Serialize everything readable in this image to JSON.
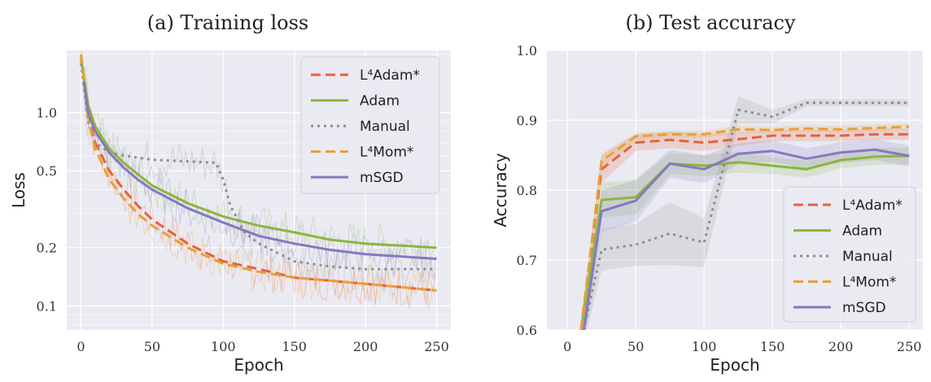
{
  "chart_data": [
    {
      "type": "line",
      "title": "(a) Training loss",
      "xlabel": "Epoch",
      "ylabel": "Loss",
      "yscale": "log",
      "xlim": [
        -10,
        260
      ],
      "ylim": [
        0.075,
        2.1
      ],
      "xticks": [
        0,
        50,
        100,
        150,
        200,
        250
      ],
      "yticks": [
        0.1,
        0.2,
        0.5,
        1.0
      ],
      "ytick_labels": [
        "0.1",
        "0.2",
        "0.5",
        "1.0"
      ],
      "grid": true,
      "legend": "top-right",
      "series": [
        {
          "name": "L⁴Adam*",
          "color": "#e8613c",
          "dash": "dashed",
          "x": [
            0,
            5,
            10,
            20,
            30,
            40,
            50,
            75,
            100,
            125,
            150,
            175,
            200,
            225,
            250
          ],
          "y": [
            2.0,
            1.0,
            0.7,
            0.5,
            0.4,
            0.33,
            0.28,
            0.21,
            0.17,
            0.155,
            0.14,
            0.135,
            0.13,
            0.125,
            0.12
          ]
        },
        {
          "name": "Adam",
          "color": "#8ab63f",
          "dash": "solid",
          "x": [
            0,
            5,
            10,
            20,
            30,
            40,
            50,
            75,
            100,
            125,
            150,
            175,
            200,
            225,
            250
          ],
          "y": [
            1.9,
            1.1,
            0.85,
            0.65,
            0.55,
            0.48,
            0.42,
            0.34,
            0.29,
            0.26,
            0.24,
            0.22,
            0.21,
            0.205,
            0.2
          ]
        },
        {
          "name": "Manual",
          "color": "#8e8e8e",
          "dash": "dotted",
          "x": [
            0,
            5,
            10,
            20,
            30,
            50,
            75,
            95,
            100,
            105,
            115,
            125,
            150,
            175,
            200,
            225,
            250
          ],
          "y": [
            1.8,
            0.9,
            0.7,
            0.62,
            0.6,
            0.57,
            0.56,
            0.55,
            0.45,
            0.33,
            0.24,
            0.21,
            0.17,
            0.16,
            0.155,
            0.155,
            0.155
          ]
        },
        {
          "name": "L⁴Mom*",
          "color": "#e8a033",
          "dash": "dashed",
          "x": [
            0,
            5,
            10,
            20,
            30,
            40,
            50,
            75,
            100,
            125,
            150,
            175,
            200,
            225,
            250
          ],
          "y": [
            2.0,
            0.95,
            0.65,
            0.45,
            0.36,
            0.3,
            0.26,
            0.2,
            0.165,
            0.15,
            0.14,
            0.135,
            0.13,
            0.125,
            0.12
          ]
        },
        {
          "name": "mSGD",
          "color": "#8578c0",
          "dash": "solid",
          "x": [
            2,
            5,
            10,
            20,
            30,
            40,
            50,
            75,
            100,
            125,
            150,
            175,
            200,
            225,
            250
          ],
          "y": [
            1.45,
            1.0,
            0.8,
            0.62,
            0.52,
            0.45,
            0.4,
            0.32,
            0.27,
            0.23,
            0.21,
            0.195,
            0.185,
            0.18,
            0.175
          ]
        }
      ]
    },
    {
      "type": "line",
      "title": "(b) Test accuracy",
      "xlabel": "Epoch",
      "ylabel": "Accuracy",
      "xlim": [
        -15,
        260
      ],
      "ylim": [
        0.6,
        1.0
      ],
      "xticks": [
        0,
        50,
        100,
        150,
        200,
        250
      ],
      "yticks": [
        0.6,
        0.7,
        0.8,
        0.9,
        1.0
      ],
      "grid": true,
      "legend": "center-right",
      "series": [
        {
          "name": "L⁴Adam*",
          "color": "#e8613c",
          "dash": "dashed",
          "x": [
            10,
            25,
            50,
            75,
            100,
            125,
            150,
            175,
            200,
            225,
            250
          ],
          "y": [
            0.6,
            0.83,
            0.868,
            0.872,
            0.868,
            0.873,
            0.878,
            0.878,
            0.878,
            0.88,
            0.88
          ],
          "band": [
            0.02,
            0.02,
            0.012,
            0.012,
            0.012,
            0.01,
            0.008,
            0.008,
            0.008,
            0.008,
            0.008
          ]
        },
        {
          "name": "Adam",
          "color": "#8ab63f",
          "dash": "solid",
          "x": [
            10,
            25,
            50,
            75,
            100,
            125,
            150,
            175,
            200,
            225,
            250
          ],
          "y": [
            0.6,
            0.786,
            0.79,
            0.838,
            0.835,
            0.84,
            0.835,
            0.83,
            0.843,
            0.848,
            0.849
          ],
          "band": [
            0.02,
            0.025,
            0.025,
            0.015,
            0.015,
            0.015,
            0.012,
            0.012,
            0.012,
            0.012,
            0.012
          ]
        },
        {
          "name": "Manual",
          "color": "#8e8e8e",
          "dash": "dotted",
          "x": [
            12,
            25,
            50,
            75,
            100,
            125,
            150,
            175,
            200,
            225,
            250
          ],
          "y": [
            0.6,
            0.715,
            0.722,
            0.738,
            0.725,
            0.915,
            0.905,
            0.925,
            0.925,
            0.925,
            0.925
          ],
          "band": [
            0.02,
            0.03,
            0.03,
            0.045,
            0.035,
            0.02,
            0.01,
            0.005,
            0.005,
            0.005,
            0.005
          ]
        },
        {
          "name": "L⁴Mom*",
          "color": "#e8a033",
          "dash": "dashed",
          "x": [
            10,
            25,
            50,
            75,
            100,
            125,
            150,
            175,
            200,
            225,
            250
          ],
          "y": [
            0.6,
            0.842,
            0.877,
            0.88,
            0.88,
            0.887,
            0.886,
            0.888,
            0.887,
            0.889,
            0.891
          ],
          "band": [
            0.01,
            0.01,
            0.005,
            0.005,
            0.005,
            0.005,
            0.005,
            0.005,
            0.005,
            0.005,
            0.005
          ]
        },
        {
          "name": "mSGD",
          "color": "#8578c0",
          "dash": "solid",
          "x": [
            12,
            25,
            50,
            75,
            100,
            125,
            150,
            175,
            200,
            225,
            250
          ],
          "y": [
            0.6,
            0.77,
            0.785,
            0.838,
            0.83,
            0.852,
            0.856,
            0.845,
            0.854,
            0.858,
            0.849
          ],
          "band": [
            0.02,
            0.03,
            0.03,
            0.02,
            0.02,
            0.015,
            0.015,
            0.015,
            0.015,
            0.015,
            0.015
          ]
        }
      ]
    }
  ]
}
